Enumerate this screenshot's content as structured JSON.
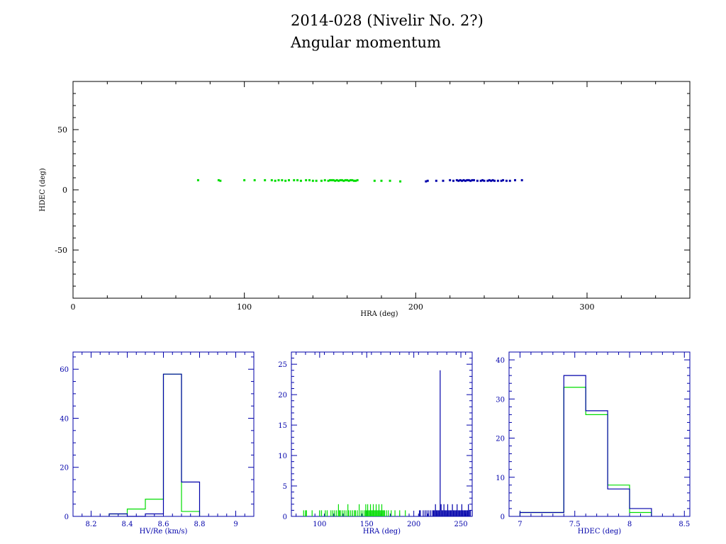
{
  "header": {
    "title": "2014-028 (Nivelir No. 2?)",
    "subtitle": "Angular momentum"
  },
  "colors": {
    "series_a": "#00dd00",
    "series_b": "#0000aa",
    "main_axes": "#000000",
    "hist_axes": "#0000aa"
  },
  "chart_data": [
    {
      "id": "main",
      "type": "scatter",
      "xlabel": "HRA (deg)",
      "ylabel": "HDEC (deg)",
      "xlim": [
        0,
        360
      ],
      "ylim": [
        -90,
        90
      ],
      "xticks": [
        0,
        100,
        200,
        300
      ],
      "yticks": [
        -50,
        0,
        50
      ],
      "series": [
        {
          "color": "#00dd00",
          "points": [
            [
              73,
              8
            ],
            [
              85,
              8
            ],
            [
              86,
              7.5
            ],
            [
              100,
              8
            ],
            [
              106,
              8
            ],
            [
              112,
              8
            ],
            [
              116,
              8
            ],
            [
              118,
              7.5
            ],
            [
              120,
              8
            ],
            [
              122,
              8
            ],
            [
              124,
              7.5
            ],
            [
              126,
              8
            ],
            [
              129,
              8
            ],
            [
              131,
              8
            ],
            [
              133,
              7.5
            ],
            [
              136,
              8
            ],
            [
              138,
              8
            ],
            [
              140,
              7.5
            ],
            [
              142,
              7.5
            ],
            [
              145,
              7.5
            ],
            [
              147,
              8
            ],
            [
              149,
              7.5
            ],
            [
              150,
              8
            ],
            [
              151,
              8
            ],
            [
              152,
              8
            ],
            [
              153,
              7.5
            ],
            [
              154,
              8
            ],
            [
              155,
              7.5
            ],
            [
              156,
              8
            ],
            [
              157,
              8
            ],
            [
              158,
              7.5
            ],
            [
              159,
              8
            ],
            [
              160,
              8
            ],
            [
              161,
              7.5
            ],
            [
              162,
              8
            ],
            [
              163,
              8
            ],
            [
              164,
              7.5
            ],
            [
              165,
              7.5
            ],
            [
              166,
              8
            ],
            [
              176,
              7.5
            ],
            [
              180,
              7.5
            ],
            [
              185,
              7.5
            ],
            [
              191,
              7
            ]
          ]
        },
        {
          "color": "#0000aa",
          "points": [
            [
              206,
              7
            ],
            [
              207,
              7.5
            ],
            [
              212,
              7.5
            ],
            [
              216,
              7.5
            ],
            [
              220,
              8
            ],
            [
              222,
              7.5
            ],
            [
              224,
              8
            ],
            [
              225,
              7.5
            ],
            [
              226,
              8
            ],
            [
              227,
              7.5
            ],
            [
              228,
              8
            ],
            [
              229,
              7.5
            ],
            [
              230,
              8
            ],
            [
              231,
              8
            ],
            [
              232,
              7.5
            ],
            [
              233,
              8
            ],
            [
              234,
              8
            ],
            [
              236,
              7.5
            ],
            [
              238,
              7.5
            ],
            [
              239,
              8
            ],
            [
              240,
              7.5
            ],
            [
              242,
              7.5
            ],
            [
              243,
              8
            ],
            [
              244,
              7.5
            ],
            [
              245,
              8
            ],
            [
              246,
              7.5
            ],
            [
              248,
              7.5
            ],
            [
              250,
              7.5
            ],
            [
              251,
              8
            ],
            [
              253,
              7.5
            ],
            [
              255,
              7.5
            ],
            [
              258,
              8
            ],
            [
              262,
              8
            ]
          ]
        }
      ]
    },
    {
      "id": "hist-hv",
      "type": "bar",
      "xlabel": "HV/Re (km/s)",
      "xlim": [
        8.1,
        9.1
      ],
      "ylim": [
        0,
        67
      ],
      "xticks": [
        "8.2",
        "8.4",
        "8.6",
        "8.8",
        "9"
      ],
      "yticks": [
        "0",
        "20",
        "40",
        "60"
      ],
      "bin_edges": [
        8.3,
        8.4,
        8.5,
        8.6,
        8.7,
        8.8
      ],
      "series": [
        {
          "color": "#00dd00",
          "values": [
            1,
            3,
            7,
            58,
            2
          ]
        },
        {
          "color": "#0000aa",
          "values": [
            1,
            0,
            1,
            58,
            14
          ]
        }
      ]
    },
    {
      "id": "hist-hra",
      "type": "bar",
      "xlabel": "HRA (deg)",
      "xlim": [
        70,
        262
      ],
      "ylim": [
        0,
        27
      ],
      "xticks": [
        "100",
        "150",
        "200",
        "250"
      ],
      "yticks": [
        "0",
        "5",
        "10",
        "15",
        "20",
        "25"
      ],
      "series": [
        {
          "color": "#00dd00",
          "positions": [
            83,
            85,
            86,
            92,
            100,
            102,
            106,
            108,
            112,
            114,
            116,
            118,
            120,
            121,
            122,
            124,
            126,
            128,
            130,
            131,
            133,
            135,
            137,
            138,
            140,
            142,
            144,
            146,
            148,
            149,
            150,
            151,
            152,
            153,
            154,
            155,
            156,
            157,
            158,
            159,
            160,
            161,
            162,
            163,
            164,
            165,
            166,
            167,
            168,
            169,
            171,
            173,
            176,
            180,
            185,
            191
          ],
          "values": [
            1,
            1,
            1,
            1,
            1,
            1,
            1,
            1,
            1,
            1,
            1,
            1,
            2,
            1,
            1,
            1,
            1,
            1,
            2,
            1,
            1,
            1,
            1,
            1,
            1,
            2,
            1,
            1,
            1,
            2,
            1,
            2,
            1,
            1,
            2,
            1,
            1,
            2,
            1,
            1,
            2,
            1,
            1,
            2,
            1,
            1,
            2,
            1,
            1,
            1,
            1,
            1,
            1,
            1,
            1,
            1
          ]
        },
        {
          "color": "#0000aa",
          "positions": [
            206,
            207,
            210,
            212,
            214,
            216,
            218,
            220,
            221,
            222,
            223,
            224,
            225,
            226,
            227,
            228,
            229,
            230,
            231,
            232,
            233,
            234,
            235,
            236,
            237,
            238,
            239,
            240,
            241,
            242,
            243,
            244,
            245,
            246,
            247,
            248,
            249,
            250,
            251,
            252,
            253,
            254,
            255,
            256,
            257,
            258,
            259,
            260,
            262
          ],
          "values": [
            1,
            1,
            1,
            1,
            1,
            1,
            1,
            1,
            1,
            1,
            2,
            1,
            1,
            1,
            1,
            24,
            2,
            1,
            1,
            2,
            1,
            1,
            1,
            2,
            1,
            1,
            1,
            1,
            2,
            1,
            1,
            1,
            1,
            2,
            1,
            1,
            1,
            1,
            2,
            1,
            1,
            1,
            1,
            1,
            1,
            2,
            1,
            1,
            1
          ]
        }
      ]
    },
    {
      "id": "hist-hdec",
      "type": "bar",
      "xlabel": "HDEC (deg)",
      "xlim": [
        6.9,
        8.55
      ],
      "ylim": [
        0,
        42
      ],
      "xticks": [
        "7",
        "7.5",
        "8",
        "8.5"
      ],
      "yticks": [
        "0",
        "10",
        "20",
        "30",
        "40"
      ],
      "bin_edges": [
        7.0,
        7.4,
        7.6,
        7.8,
        8.0,
        8.2
      ],
      "series": [
        {
          "color": "#00dd00",
          "values": [
            1,
            33,
            26,
            8,
            1
          ]
        },
        {
          "color": "#0000aa",
          "values": [
            1,
            36,
            27,
            7,
            2
          ]
        }
      ]
    }
  ]
}
